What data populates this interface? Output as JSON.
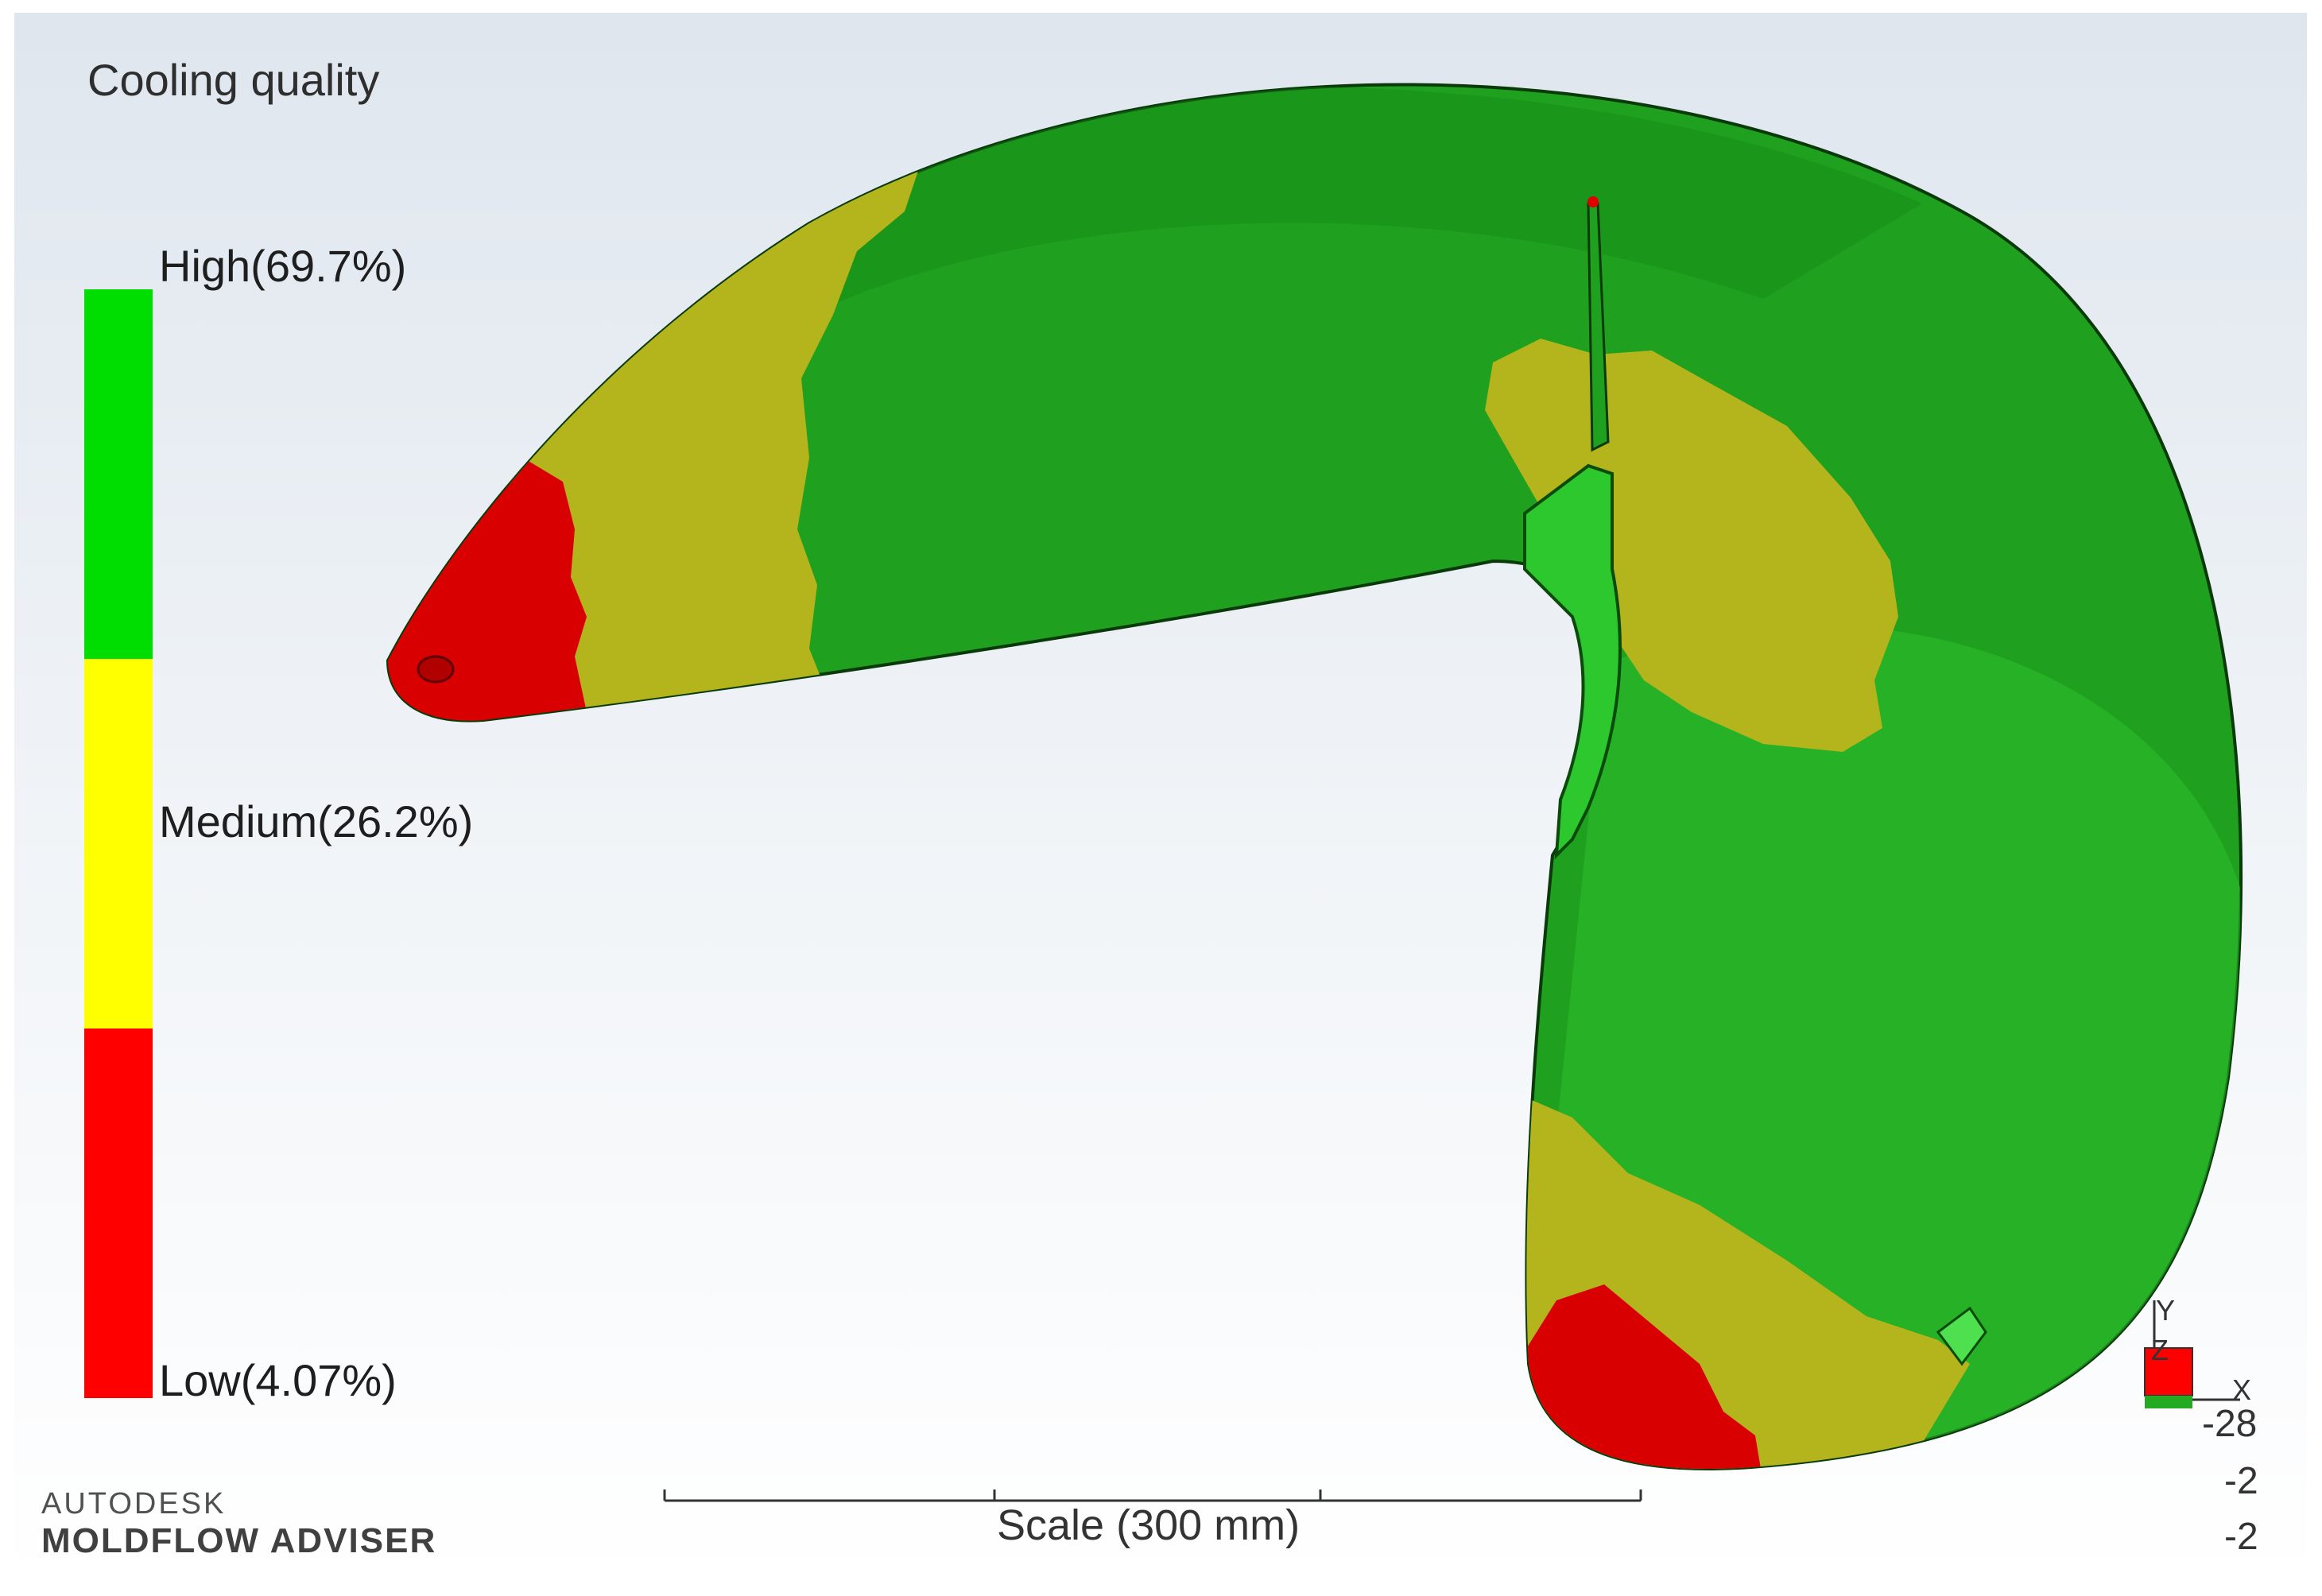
{
  "legend": {
    "title": "Cooling quality",
    "high_label": "High(69.7%)",
    "medium_label": "Medium(26.2%)",
    "low_label": "Low(4.07%)",
    "high_color": "#00dd00",
    "medium_color": "#ffff00",
    "low_color": "#ff0000"
  },
  "branding": {
    "company": "AUTODESK",
    "product": "MOLDFLOW ADVISER"
  },
  "scale": {
    "label": "Scale (300 mm)"
  },
  "axis_triad": {
    "y_label": "Y",
    "z_label": "Z",
    "x_label": "X"
  },
  "coordinates": {
    "value_1": "-28",
    "value_2": "-2",
    "value_3": "-2"
  },
  "model_colors": {
    "high": "#1e9e1e",
    "medium": "#b8b81e",
    "low": "#d40000"
  }
}
